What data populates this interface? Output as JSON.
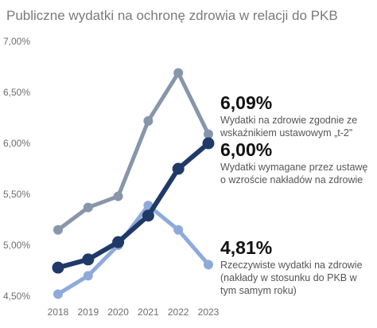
{
  "chart_data": {
    "type": "line",
    "title": "Publiczne wydatki na ochronę zdrowia w relacji do PKB",
    "xlabel": "",
    "ylabel": "",
    "x": [
      "2018",
      "2019",
      "2020",
      "2021",
      "2022",
      "2023"
    ],
    "ylim": [
      4.5,
      7.0
    ],
    "yticks": [
      "4,50%",
      "5,00%",
      "5,50%",
      "6,00%",
      "6,50%",
      "7,00%"
    ],
    "grid": false,
    "legend": "none",
    "series": [
      {
        "name": "Wydatki na zdrowie zgodnie ze wskaźnikiem ustawowym „t-2”",
        "values": [
          5.15,
          5.37,
          5.48,
          6.22,
          6.69,
          6.09
        ],
        "color": "#8896ab",
        "end_label": "6,09%",
        "desc_lines": [
          "Wydatki na zdrowie zgodnie ze",
          "wskaźnikiem ustawowym „t-2”"
        ]
      },
      {
        "name": "Wydatki wymagane przez ustawę o wzroście nakładów na zdrowie",
        "values": [
          4.78,
          4.86,
          5.03,
          5.29,
          5.75,
          6.0
        ],
        "color": "#1f3a68",
        "end_label": "6,00%",
        "desc_lines": [
          "Wydatki wymagane przez ustawę",
          "o wzroście nakładów na zdrowie"
        ]
      },
      {
        "name": "Rzeczywiste wydatki na zdrowie (nakłady w stosunku do PKB w tym samym roku)",
        "values": [
          4.52,
          4.7,
          5.0,
          5.39,
          5.15,
          4.81
        ],
        "color": "#8eaadb",
        "end_label": "4,81%",
        "desc_lines": [
          "Rzeczywiste wydatki na zdrowie",
          "(nakłady w stosunku do PKB w",
          "tym samym roku)"
        ]
      }
    ]
  }
}
